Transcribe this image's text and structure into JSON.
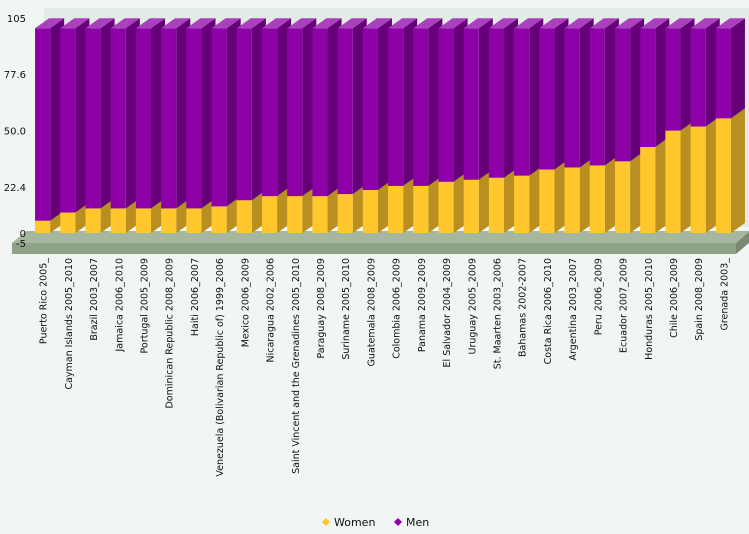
{
  "chart_data": {
    "type": "bar",
    "stacked": true,
    "three_d": true,
    "categories": [
      "Puerto Rico 2005_",
      "Cayman Islands 2005_2010",
      "Brazil 2003_2007",
      "Jamaica 2006_2010",
      "Portugal 2005_2009",
      "Dominican Republic 2008_2009",
      "Haiti 2006_2007",
      "Venezuela (Bolivarian Republic of) 1999_2006",
      "Mexico 2006_2009",
      "Nicaragua 2002_2006",
      "Saint Vincent and the Grenadines 2005_2010",
      "Paraguay 2008_2009",
      "Suriname 2005_2010",
      "Guatemala 2008_2009",
      "Colombia 2006_2009",
      "Panama 2009_2009",
      "El Salvador 2004_2009",
      "Uruguay 2005_2009",
      "St. Maarten 2003_2006",
      "Bahamas 2002-2007",
      "Costa Rica 2006_2010",
      "Argentina 2003_2007",
      "Peru 2006_2009",
      "Ecuador 2007_2009",
      "Honduras 2005_2010",
      "Chile 2006_2009",
      "Spain 2008_2009",
      "Grenada 2003_"
    ],
    "series": [
      {
        "name": "Women",
        "color": "#ffc72c",
        "values": [
          6,
          10,
          12,
          12,
          12,
          12,
          12,
          13,
          16,
          18,
          18,
          18,
          19,
          21,
          23,
          23,
          25,
          26,
          27,
          28,
          31,
          32,
          33,
          35,
          42,
          50,
          52,
          56
        ]
      },
      {
        "name": "Men",
        "color": "#8e00a8",
        "values": [
          94,
          90,
          88,
          88,
          88,
          88,
          88,
          87,
          84,
          82,
          82,
          82,
          81,
          79,
          77,
          77,
          75,
          74,
          73,
          72,
          69,
          68,
          67,
          65,
          58,
          50,
          48,
          44
        ]
      }
    ],
    "y_ticks": [
      "105",
      "77.6",
      "50.0",
      "22.4",
      "0",
      "-5"
    ],
    "ylim": [
      -5,
      105
    ],
    "xlabel": "",
    "ylabel": "",
    "legend_position": "bottom-center",
    "colors": {
      "wall": "#e2ebe5",
      "floor": "#a6b79f",
      "floor_front": "#8ea287"
    }
  }
}
